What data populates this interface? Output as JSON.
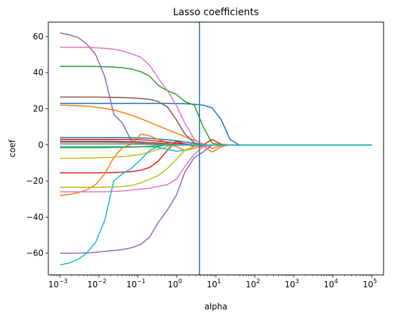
{
  "chart_data": {
    "type": "line",
    "title": "Lasso coefficients",
    "xlabel": "alpha",
    "ylabel": "coef",
    "xscale": "log",
    "xlim_log10": [
      -3.3,
      5.3
    ],
    "ylim": [
      -72,
      68
    ],
    "x_ticks": [
      {
        "base": "10",
        "exp": "−3",
        "log10": -3
      },
      {
        "base": "10",
        "exp": "−2",
        "log10": -2
      },
      {
        "base": "10",
        "exp": "−1",
        "log10": -1
      },
      {
        "base": "10",
        "exp": "0",
        "log10": 0
      },
      {
        "base": "10",
        "exp": "1",
        "log10": 1
      },
      {
        "base": "10",
        "exp": "2",
        "log10": 2
      },
      {
        "base": "10",
        "exp": "3",
        "log10": 3
      },
      {
        "base": "10",
        "exp": "4",
        "log10": 4
      },
      {
        "base": "10",
        "exp": "5",
        "log10": 5
      }
    ],
    "y_ticks": [
      {
        "label": "−60",
        "value": -60
      },
      {
        "label": "−40",
        "value": -40
      },
      {
        "label": "−20",
        "value": -20
      },
      {
        "label": "0",
        "value": 0
      },
      {
        "label": "20",
        "value": 20
      },
      {
        "label": "40",
        "value": 40
      },
      {
        "label": "60",
        "value": 60
      }
    ],
    "vline": {
      "alpha": 3.8,
      "color": "#1f77b4"
    },
    "grid": false,
    "legend": "none",
    "alphas": [
      0.001,
      0.0017,
      0.0029,
      0.0048,
      0.0082,
      0.014,
      0.024,
      0.04,
      0.068,
      0.12,
      0.2,
      0.33,
      0.57,
      0.96,
      1.6,
      2.8,
      4.7,
      8,
      13.6,
      23,
      39,
      66,
      112,
      1000,
      10000,
      100000
    ],
    "series": [
      {
        "color": "#1f77b4",
        "values": [
          23,
          23,
          23,
          23,
          23,
          23,
          23,
          23,
          23,
          23,
          23,
          23,
          23,
          22.9,
          22.8,
          22.5,
          22,
          20.5,
          14,
          3,
          0,
          0,
          0,
          0,
          0,
          0
        ]
      },
      {
        "color": "#ff7f0e",
        "values": [
          22,
          21.9,
          21.7,
          21.4,
          20.9,
          20.2,
          19.3,
          18,
          16.5,
          14.5,
          12.5,
          10.5,
          8.5,
          6.5,
          4.5,
          2.5,
          0.5,
          -2,
          -0.3,
          0,
          0,
          0,
          0,
          0,
          0,
          0
        ]
      },
      {
        "color": "#2ca02c",
        "values": [
          43.5,
          43.5,
          43.5,
          43.5,
          43.4,
          43.3,
          43.1,
          42.7,
          42,
          40.5,
          38,
          33,
          30,
          28,
          24,
          22,
          10,
          1,
          0,
          0,
          0,
          0,
          0,
          0,
          0,
          0
        ]
      },
      {
        "color": "#d62728",
        "values": [
          -15.5,
          -15.5,
          -15.5,
          -15.5,
          -15.5,
          -15.4,
          -15.3,
          -15.1,
          -14.8,
          -14,
          -12.5,
          -9,
          -3,
          2,
          0.5,
          -1,
          0,
          3,
          0.3,
          0,
          0,
          0,
          0,
          0,
          0,
          0
        ]
      },
      {
        "color": "#9467bd",
        "values": [
          62,
          61,
          59.5,
          56,
          50,
          38,
          17,
          12,
          2,
          1,
          0.5,
          0.3,
          0.1,
          0,
          0,
          0,
          0,
          0,
          0,
          0,
          0,
          0,
          0,
          0,
          0,
          0
        ]
      },
      {
        "color": "#8c564b",
        "values": [
          26.5,
          26.5,
          26.5,
          26.5,
          26.5,
          26.4,
          26.3,
          26.2,
          26,
          25.7,
          25.2,
          24,
          21,
          14,
          6,
          1,
          0,
          0,
          0,
          0,
          0,
          0,
          0,
          0,
          0,
          0
        ]
      },
      {
        "color": "#e377c2",
        "values": [
          54,
          54,
          54,
          54,
          53.8,
          53.5,
          53,
          52,
          50.5,
          48.5,
          44,
          37,
          30,
          22,
          12,
          3,
          0,
          0,
          0,
          0,
          0,
          0,
          0,
          0,
          0,
          0
        ]
      },
      {
        "color": "#7f7f7f",
        "values": [
          1.5,
          1.5,
          1.5,
          1.5,
          1.5,
          1.4,
          1.4,
          1.3,
          1.2,
          1,
          0.8,
          0.5,
          0.3,
          0.1,
          0,
          0,
          0,
          0,
          0,
          0,
          0,
          0,
          0,
          0,
          0,
          0
        ]
      },
      {
        "color": "#bcbd22",
        "values": [
          -7.5,
          -7.5,
          -7.4,
          -7.3,
          -7.2,
          -7,
          -6.8,
          -6.5,
          -6,
          -5.2,
          -4,
          -2.5,
          -1,
          -0.3,
          0,
          0,
          0,
          0,
          0,
          0,
          0,
          0,
          0,
          0,
          0,
          0
        ]
      },
      {
        "color": "#17becf",
        "values": [
          -1,
          -1,
          -1,
          -1,
          -1,
          -1,
          -1,
          -1,
          -1,
          -1,
          -1,
          -1.5,
          -2.5,
          -3.5,
          -3,
          -1,
          0,
          0,
          0,
          0,
          0,
          0,
          0,
          0,
          0,
          0
        ]
      },
      {
        "color": "#1f77b4",
        "values": [
          4,
          4,
          4,
          4,
          4,
          4,
          4,
          4,
          4,
          3.8,
          3.6,
          3.2,
          2.8,
          2.3,
          1.6,
          0.8,
          0,
          0,
          0,
          0,
          0,
          0,
          0,
          0,
          0,
          0
        ]
      },
      {
        "color": "#ff7f0e",
        "values": [
          -28,
          -27.5,
          -26.5,
          -25,
          -22,
          -16,
          -7,
          -1.5,
          0.5,
          6,
          5,
          3,
          1,
          -1,
          -3,
          -2,
          -0.5,
          -4,
          -1,
          0,
          0,
          0,
          0,
          0,
          0,
          0
        ]
      },
      {
        "color": "#2ca02c",
        "values": [
          -1.5,
          -1.5,
          -1.5,
          -1.5,
          -1.5,
          -1.5,
          -1.4,
          -1.3,
          -1.2,
          -1,
          -0.8,
          -0.5,
          -0.2,
          0,
          0,
          0,
          0,
          0,
          0,
          0,
          0,
          0,
          0,
          0,
          0,
          0
        ]
      },
      {
        "color": "#d62728",
        "values": [
          3,
          3,
          3,
          3,
          3,
          3,
          3,
          3,
          3,
          2.8,
          2.5,
          2,
          1.5,
          1,
          0.5,
          0,
          -1,
          0,
          0,
          0,
          0,
          0,
          0,
          0,
          0,
          0
        ]
      },
      {
        "color": "#9467bd",
        "values": [
          -60,
          -60,
          -60,
          -59.8,
          -59.5,
          -59,
          -58.5,
          -58,
          -57,
          -55,
          -51,
          -43,
          -36,
          -28,
          -15,
          -7,
          -4,
          0,
          0,
          0,
          0,
          0,
          0,
          0,
          0,
          0
        ]
      },
      {
        "color": "#8c564b",
        "values": [
          2,
          2,
          2,
          2,
          2,
          2,
          2,
          1.9,
          1.8,
          1.6,
          1.3,
          1,
          0.6,
          0.3,
          0,
          0,
          0,
          0,
          0,
          0,
          0,
          0,
          0,
          0,
          0,
          0
        ]
      },
      {
        "color": "#e377c2",
        "values": [
          -26,
          -26,
          -26,
          -26,
          -26,
          -26,
          -25.8,
          -25.5,
          -25,
          -24.5,
          -24,
          -23,
          -22,
          -19,
          -12,
          -5,
          -1,
          0,
          0,
          0,
          0,
          0,
          0,
          0,
          0,
          0
        ]
      },
      {
        "color": "#7f7f7f",
        "values": [
          0.5,
          0.5,
          0.5,
          0.5,
          0.5,
          0.5,
          0.5,
          0.5,
          0.4,
          0.4,
          0.3,
          0.2,
          0.1,
          0,
          0,
          0,
          0,
          0,
          0,
          0,
          0,
          0,
          0,
          0,
          0,
          0
        ]
      },
      {
        "color": "#bcbd22",
        "values": [
          -23.5,
          -23.5,
          -23.5,
          -23.5,
          -23.5,
          -23.4,
          -23.3,
          -23.1,
          -22.5,
          -21,
          -19,
          -17,
          -13,
          -8,
          -3,
          -1,
          0,
          0,
          0,
          0,
          0,
          0,
          0,
          0,
          0,
          0
        ]
      },
      {
        "color": "#17becf",
        "values": [
          -66.5,
          -65.5,
          -63.5,
          -60,
          -54,
          -42,
          -20,
          -16,
          -13,
          -8,
          -3,
          -1,
          0,
          0,
          0,
          0,
          0,
          0,
          0,
          0,
          0,
          0,
          0,
          0,
          0,
          0
        ]
      }
    ]
  }
}
